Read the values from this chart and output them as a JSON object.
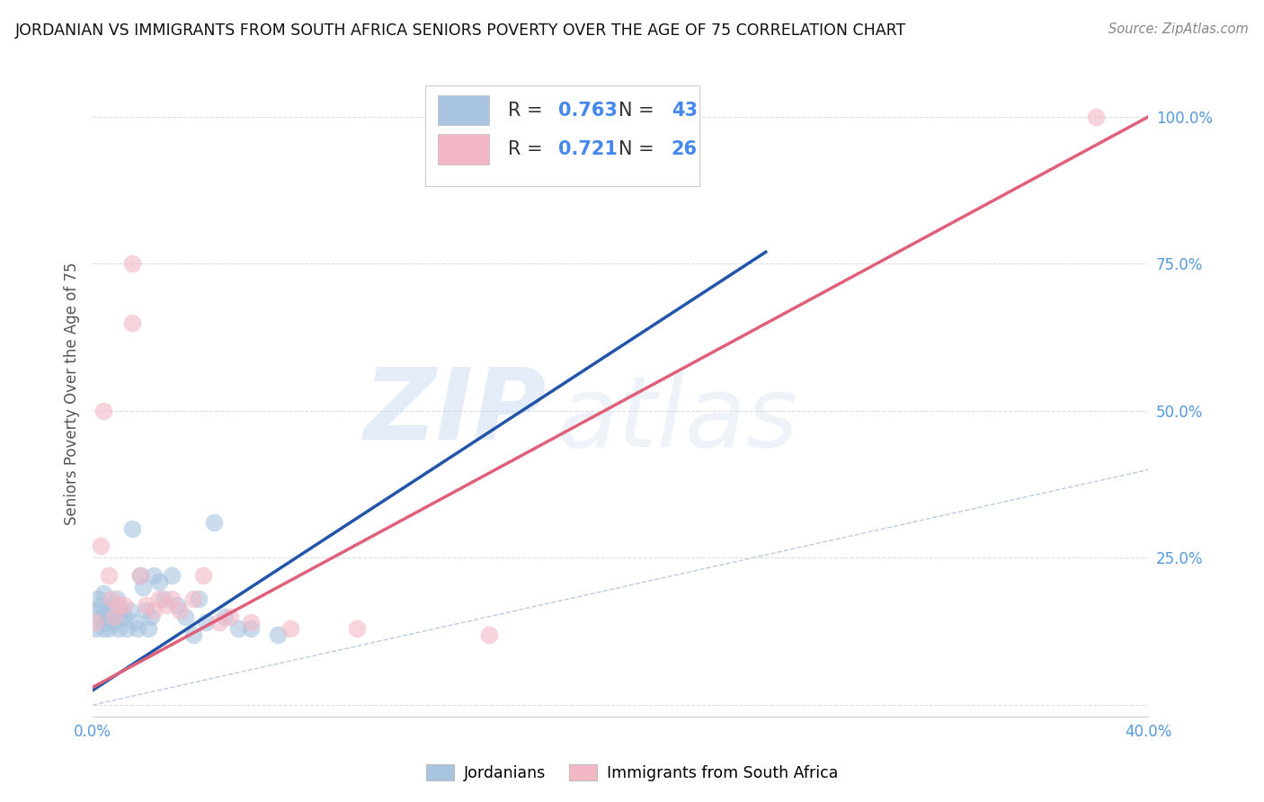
{
  "title": "JORDANIAN VS IMMIGRANTS FROM SOUTH AFRICA SENIORS POVERTY OVER THE AGE OF 75 CORRELATION CHART",
  "source": "Source: ZipAtlas.com",
  "ylabel": "Seniors Poverty Over the Age of 75",
  "xlim": [
    0.0,
    0.4
  ],
  "ylim": [
    -0.02,
    1.08
  ],
  "yticks": [
    0.0,
    0.25,
    0.5,
    0.75,
    1.0
  ],
  "ytick_labels": [
    "",
    "25.0%",
    "50.0%",
    "75.0%",
    "100.0%"
  ],
  "xticks": [
    0.0,
    0.08,
    0.16,
    0.24,
    0.32,
    0.4
  ],
  "xtick_labels": [
    "0.0%",
    "",
    "",
    "",
    "",
    "40.0%"
  ],
  "blue_R": 0.763,
  "blue_N": 43,
  "pink_R": 0.721,
  "pink_N": 26,
  "blue_color": "#A8C4E0",
  "pink_color": "#F2B8C6",
  "blue_line_color": "#2255AA",
  "pink_line_color": "#E0607A",
  "diag_line_color": "#BBCCDD",
  "watermark_zip": "ZIP",
  "watermark_atlas": "atlas",
  "blue_scatter_x": [
    0.001,
    0.002,
    0.002,
    0.003,
    0.003,
    0.004,
    0.004,
    0.005,
    0.005,
    0.006,
    0.006,
    0.007,
    0.008,
    0.008,
    0.009,
    0.01,
    0.01,
    0.011,
    0.012,
    0.013,
    0.014,
    0.015,
    0.016,
    0.017,
    0.018,
    0.019,
    0.02,
    0.021,
    0.022,
    0.023,
    0.025,
    0.027,
    0.03,
    0.032,
    0.035,
    0.038,
    0.04,
    0.043,
    0.046,
    0.05,
    0.055,
    0.06,
    0.07
  ],
  "blue_scatter_y": [
    0.13,
    0.16,
    0.18,
    0.15,
    0.17,
    0.13,
    0.19,
    0.14,
    0.16,
    0.15,
    0.13,
    0.16,
    0.17,
    0.14,
    0.18,
    0.13,
    0.15,
    0.16,
    0.15,
    0.13,
    0.16,
    0.3,
    0.14,
    0.13,
    0.22,
    0.2,
    0.16,
    0.13,
    0.15,
    0.22,
    0.21,
    0.18,
    0.22,
    0.17,
    0.15,
    0.12,
    0.18,
    0.14,
    0.31,
    0.15,
    0.13,
    0.13,
    0.12
  ],
  "blue_line_x": [
    0.0,
    0.255
  ],
  "blue_line_y": [
    0.025,
    0.77
  ],
  "pink_scatter_x": [
    0.001,
    0.003,
    0.004,
    0.006,
    0.007,
    0.008,
    0.01,
    0.012,
    0.015,
    0.018,
    0.02,
    0.023,
    0.025,
    0.028,
    0.03,
    0.033,
    0.038,
    0.042,
    0.048,
    0.052,
    0.06,
    0.075,
    0.1,
    0.15,
    0.38,
    0.015
  ],
  "pink_scatter_y": [
    0.14,
    0.27,
    0.5,
    0.22,
    0.18,
    0.15,
    0.17,
    0.17,
    0.65,
    0.22,
    0.17,
    0.16,
    0.18,
    0.17,
    0.18,
    0.16,
    0.18,
    0.22,
    0.14,
    0.15,
    0.14,
    0.13,
    0.13,
    0.12,
    1.0,
    0.75
  ],
  "pink_line_x": [
    0.0,
    0.4
  ],
  "pink_line_y": [
    0.03,
    1.0
  ]
}
